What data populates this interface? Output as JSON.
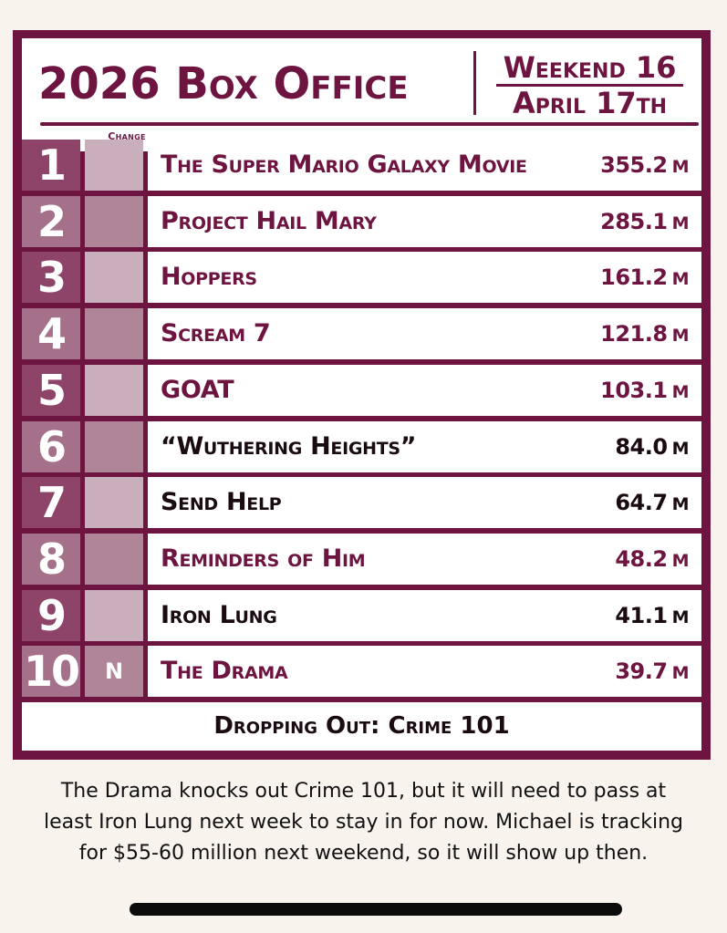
{
  "header": {
    "title": "2026 Box Office",
    "weekend": "Weekend 16",
    "date": "April 17th",
    "change_label": "Change"
  },
  "rows": [
    {
      "rank": "1",
      "change": "",
      "title": "The Super Mario Galaxy Movie",
      "gross": "355.2",
      "unit": "M",
      "title_color": "#6e1440"
    },
    {
      "rank": "2",
      "change": "",
      "title": "Project Hail Mary",
      "gross": "285.1",
      "unit": "M",
      "title_color": "#6e1440"
    },
    {
      "rank": "3",
      "change": "",
      "title": "Hoppers",
      "gross": "161.2",
      "unit": "M",
      "title_color": "#6e1440"
    },
    {
      "rank": "4",
      "change": "",
      "title": "Scream 7",
      "gross": "121.8",
      "unit": "M",
      "title_color": "#6e1440"
    },
    {
      "rank": "5",
      "change": "",
      "title": "GOAT",
      "gross": "103.1",
      "unit": "M",
      "title_color": "#6e1440"
    },
    {
      "rank": "6",
      "change": "",
      "title": "“Wuthering Heights”",
      "gross": "84.0",
      "unit": "M",
      "title_color": "#1a0a12"
    },
    {
      "rank": "7",
      "change": "",
      "title": "Send Help",
      "gross": "64.7",
      "unit": "M",
      "title_color": "#1a0a12"
    },
    {
      "rank": "8",
      "change": "",
      "title": "Reminders of Him",
      "gross": "48.2",
      "unit": "M",
      "title_color": "#6e1440"
    },
    {
      "rank": "9",
      "change": "",
      "title": "Iron Lung",
      "gross": "41.1",
      "unit": "M",
      "title_color": "#1a0a12"
    },
    {
      "rank": "10",
      "change": "N",
      "title": "The Drama",
      "gross": "39.7",
      "unit": "M",
      "title_color": "#6e1440"
    }
  ],
  "dropping_out": "Dropping Out: Crime 101",
  "caption": [
    "The Drama knocks out Crime 101, but it will need to pass at",
    "least Iron Lung next week to stay in for now. Michael is tracking",
    "for $55-60 million next weekend, so it will show up then."
  ],
  "colors": {
    "board": "#6e1440",
    "rank_dark": "#8e4468",
    "rank_light": "#a5708a",
    "change_dark": "#b08597",
    "change_light": "#c9aebb"
  }
}
